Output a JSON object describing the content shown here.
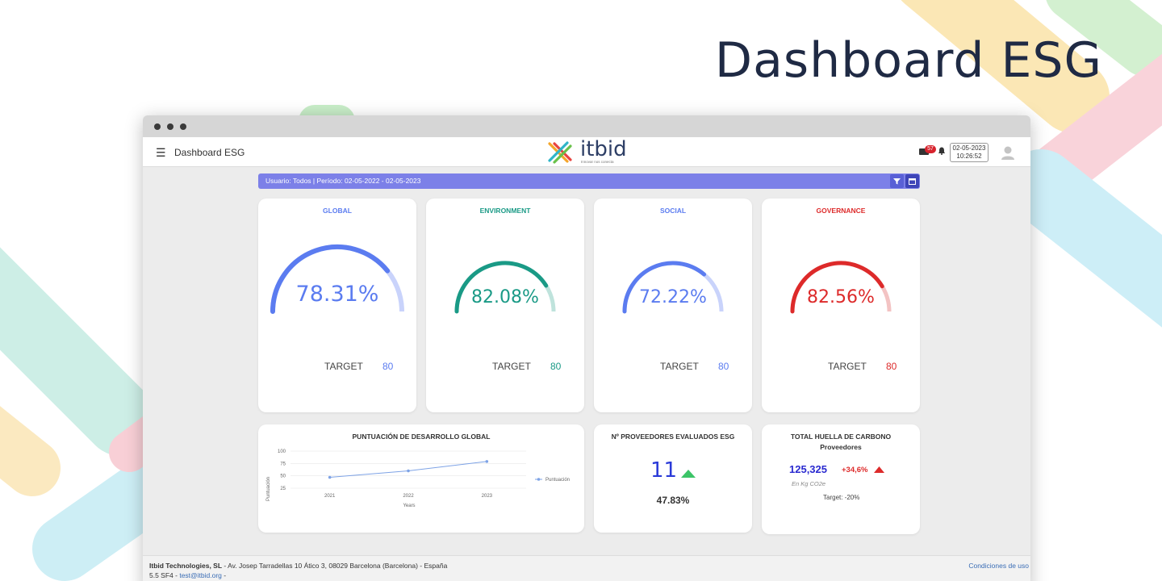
{
  "hero_title": "Dashboard ESG",
  "app": {
    "menu_icon": "hamburger-icon",
    "title": "Dashboard ESG",
    "logo_text": "itbid",
    "logo_tagline": "Innovar nos conecta",
    "notifications_count": "57",
    "date": "02-05-2023",
    "time": "10:26:52"
  },
  "filter": {
    "text": "Usuario: Todos | Período: 02-05-2022 - 02-05-2023"
  },
  "kpis": [
    {
      "title": "GLOBAL",
      "value": "78.31%",
      "target_label": "TARGET",
      "target": "80",
      "fraction": 0.7831,
      "color": "#5b7cf0",
      "track": "#c9d3fb"
    },
    {
      "title": "ENVIRONMENT",
      "value": "82.08%",
      "target_label": "TARGET",
      "target": "80",
      "fraction": 0.8208,
      "color": "#1a9a86",
      "track": "#bfe3dc"
    },
    {
      "title": "SOCIAL",
      "value": "72.22%",
      "target_label": "TARGET",
      "target": "80",
      "fraction": 0.7222,
      "color": "#5b7cf0",
      "track": "#c9d3fb"
    },
    {
      "title": "GOVERNANCE",
      "value": "82.56%",
      "target_label": "TARGET",
      "target": "80",
      "fraction": 0.8256,
      "color": "#dd2a2a",
      "track": "#f3c3c3"
    }
  ],
  "chart_data": {
    "type": "line",
    "title": "PUNTUACIÓN DE DESARROLLO GLOBAL",
    "xlabel": "Years",
    "ylabel": "Puntuación",
    "categories": [
      "2021",
      "2022",
      "2023"
    ],
    "series": [
      {
        "name": "Puntuación",
        "values": [
          47,
          60,
          79
        ]
      }
    ],
    "yticks": [
      "25",
      "50",
      "75",
      "100"
    ],
    "ylim": [
      25,
      100
    ],
    "legend": "right"
  },
  "suppliers": {
    "title": "Nº PROVEEDORES EVALUADOS ESG",
    "count": "11",
    "percent": "47.83%"
  },
  "carbon": {
    "title": "TOTAL HUELLA DE CARBONO",
    "subtitle": "Proveedores",
    "value": "125,325",
    "change": "+34,6%",
    "unit": "En Kg CO2e",
    "target": "Target: -20%"
  },
  "footer": {
    "company": "Itbid Technologies, SL",
    "address": " - Av. Josep Tarradellas 10 Ático 3, 08029 Barcelona (Barcelona) - España",
    "version": "5.5 SF4 - ",
    "email": "test@itbid.org",
    "email_suffix": " -",
    "terms": "Condiciones de uso"
  }
}
